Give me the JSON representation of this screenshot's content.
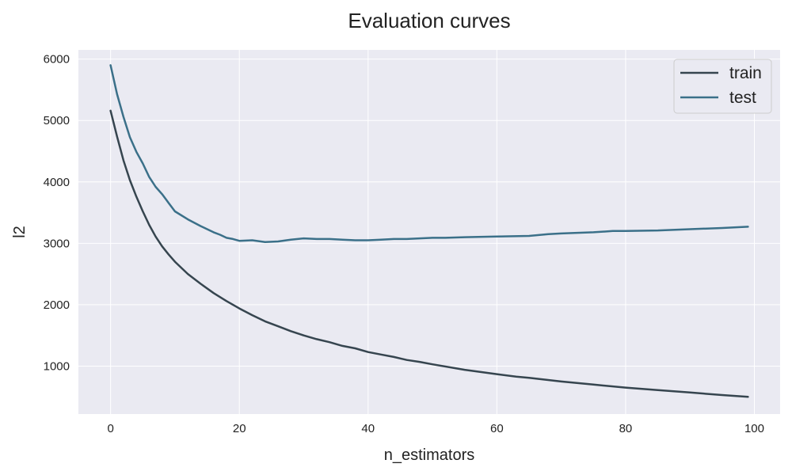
{
  "chart_data": {
    "type": "line",
    "title": "Evaluation curves",
    "xlabel": "n_estimators",
    "ylabel": "l2",
    "xlim": [
      -5,
      104
    ],
    "ylim": [
      220,
      6150
    ],
    "xticks": [
      0,
      20,
      40,
      60,
      80,
      100
    ],
    "yticks": [
      1000,
      2000,
      3000,
      4000,
      5000,
      6000
    ],
    "grid": true,
    "background_color": "#EAEAF2",
    "legend_position": "top-right",
    "series": [
      {
        "name": "train",
        "color": "#36454F",
        "x": [
          0,
          1,
          2,
          3,
          4,
          5,
          6,
          7,
          8,
          9,
          10,
          12,
          14,
          16,
          18,
          20,
          22,
          24,
          26,
          28,
          30,
          32,
          34,
          36,
          38,
          40,
          42,
          44,
          46,
          48,
          50,
          55,
          60,
          63,
          65,
          70,
          75,
          80,
          85,
          90,
          95,
          99
        ],
        "y": [
          5160,
          4740,
          4350,
          4030,
          3760,
          3520,
          3300,
          3110,
          2950,
          2820,
          2700,
          2500,
          2340,
          2190,
          2060,
          1940,
          1830,
          1730,
          1650,
          1570,
          1500,
          1440,
          1390,
          1330,
          1290,
          1230,
          1190,
          1150,
          1100,
          1070,
          1030,
          940,
          870,
          830,
          810,
          750,
          700,
          650,
          610,
          570,
          530,
          500
        ]
      },
      {
        "name": "test",
        "color": "#3B7089",
        "x": [
          0,
          1,
          2,
          3,
          4,
          5,
          6,
          7,
          8,
          9,
          10,
          12,
          14,
          16,
          17,
          18,
          19,
          20,
          22,
          24,
          26,
          28,
          30,
          32,
          34,
          36,
          38,
          40,
          42,
          44,
          46,
          48,
          50,
          52,
          55,
          60,
          65,
          68,
          70,
          75,
          78,
          80,
          85,
          90,
          95,
          99
        ],
        "y": [
          5900,
          5430,
          5060,
          4730,
          4490,
          4300,
          4080,
          3920,
          3800,
          3660,
          3520,
          3390,
          3280,
          3180,
          3140,
          3090,
          3070,
          3040,
          3050,
          3020,
          3030,
          3060,
          3080,
          3070,
          3070,
          3060,
          3050,
          3050,
          3060,
          3070,
          3070,
          3080,
          3090,
          3090,
          3100,
          3110,
          3120,
          3150,
          3160,
          3180,
          3200,
          3200,
          3210,
          3230,
          3250,
          3270
        ]
      }
    ]
  }
}
